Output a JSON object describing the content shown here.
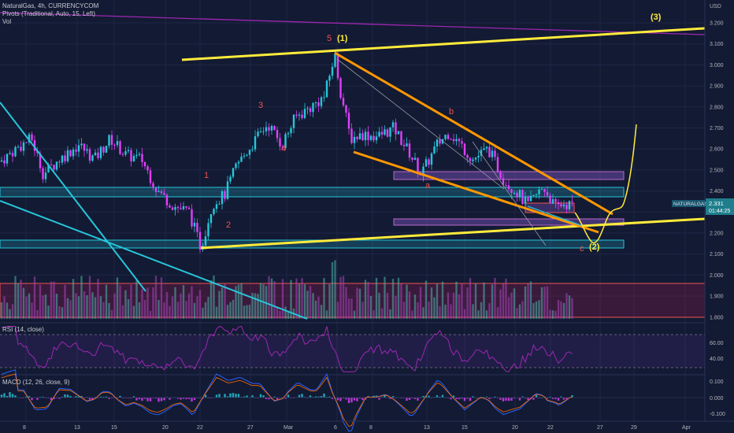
{
  "header": {
    "symbol_line": "NaturalGas, 4h, CURRENCYCOM",
    "pivots_line": "Pivots (Traditional, Auto, 15, Left)",
    "vol_line": "Vol"
  },
  "price_axis": {
    "currency": "USD",
    "ticks": [
      "3.200",
      "3.100",
      "3.000",
      "2.900",
      "2.800",
      "2.700",
      "2.600",
      "2.500",
      "2.400",
      "2.300",
      "2.200",
      "2.100",
      "2.000",
      "1.900",
      "1.800"
    ],
    "last_label": "NATURALGAS",
    "last_price": "2.331",
    "countdown": "01:44:25"
  },
  "rsi": {
    "title": "RSI (14, close)",
    "ticks": [
      "60.00",
      "40.00"
    ],
    "overbought": 70,
    "oversold": 30
  },
  "macd": {
    "title": "MACD (12, 26, close, 9)",
    "ticks": [
      "0.100",
      "0.000",
      "-0.100"
    ]
  },
  "time_axis": {
    "labels": [
      "8",
      "13",
      "15",
      "20",
      "22",
      "27",
      "Mar",
      "6",
      "8",
      "13",
      "15",
      "20",
      "22",
      "27",
      "29",
      "Apr"
    ]
  },
  "wave_labels": {
    "w5": "5",
    "w1": "(1)",
    "w3": "(3)",
    "w2": "(2)",
    "n1": "1",
    "n2": "2",
    "n3": "3",
    "n4": "4",
    "a": "a",
    "b": "b",
    "c": "c"
  },
  "colors": {
    "background": "#131a33",
    "up": "#26c6da",
    "down": "#e040fb",
    "trendline_yellow": "#ffeb3b",
    "channel_orange": "#ff9800",
    "cyan_line": "#26c6da",
    "purple_line": "#9c27b0",
    "wave_red": "#ef5350"
  },
  "chart_data": {
    "type": "candlestick",
    "title": "NaturalGas, 4h, CURRENCYCOM",
    "ylabel": "USD",
    "ylim": [
      1.76,
      3.26
    ],
    "last_close": 2.331,
    "key_points": [
      {
        "label": "5 (1)",
        "price": 3.06
      },
      {
        "label": "1",
        "price": 2.39
      },
      {
        "label": "2",
        "price": 2.12
      },
      {
        "label": "3",
        "price": 2.82
      },
      {
        "label": "4",
        "price": 2.6
      },
      {
        "label": "a",
        "price": 2.46
      },
      {
        "label": "b",
        "price": 2.71
      },
      {
        "label": "c (2)",
        "price": 2.15
      }
    ],
    "zones": [
      {
        "name": "resistance",
        "from": 2.44,
        "to": 2.48
      },
      {
        "name": "support",
        "from": 2.38,
        "to": 2.42
      },
      {
        "name": "support",
        "from": 2.23,
        "to": 2.26
      },
      {
        "name": "support",
        "from": 2.13,
        "to": 2.17
      }
    ]
  }
}
